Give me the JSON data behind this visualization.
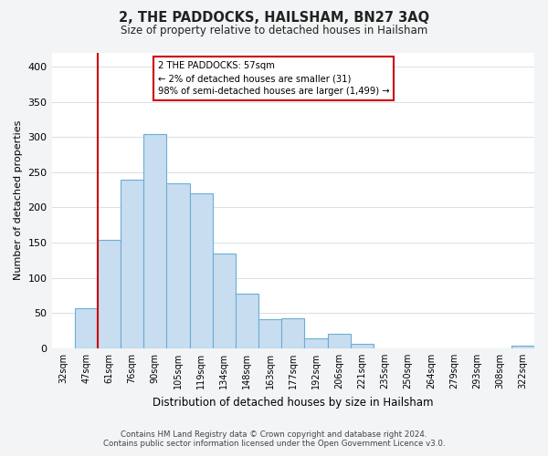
{
  "title": "2, THE PADDOCKS, HAILSHAM, BN27 3AQ",
  "subtitle": "Size of property relative to detached houses in Hailsham",
  "xlabel": "Distribution of detached houses by size in Hailsham",
  "ylabel": "Number of detached properties",
  "bar_labels": [
    "32sqm",
    "47sqm",
    "61sqm",
    "76sqm",
    "90sqm",
    "105sqm",
    "119sqm",
    "134sqm",
    "148sqm",
    "163sqm",
    "177sqm",
    "192sqm",
    "206sqm",
    "221sqm",
    "235sqm",
    "250sqm",
    "264sqm",
    "279sqm",
    "293sqm",
    "308sqm",
    "322sqm"
  ],
  "bar_values": [
    0,
    57,
    154,
    239,
    304,
    234,
    220,
    134,
    78,
    41,
    42,
    14,
    20,
    6,
    0,
    0,
    0,
    0,
    0,
    0,
    4
  ],
  "bar_color": "#c8ddf0",
  "bar_edge_color": "#6aaed6",
  "vline_x_index": 2,
  "vline_color": "#cc0000",
  "annotation_lines": [
    "2 THE PADDOCKS: 57sqm",
    "← 2% of detached houses are smaller (31)",
    "98% of semi-detached houses are larger (1,499) →"
  ],
  "annotation_box_color": "#ffffff",
  "annotation_box_edge": "#cc0000",
  "ylim": [
    0,
    420
  ],
  "yticks": [
    0,
    50,
    100,
    150,
    200,
    250,
    300,
    350,
    400
  ],
  "footer_line1": "Contains HM Land Registry data © Crown copyright and database right 2024.",
  "footer_line2": "Contains public sector information licensed under the Open Government Licence v3.0.",
  "bg_color": "#f2f4f5",
  "plot_bg_color": "#ffffff"
}
